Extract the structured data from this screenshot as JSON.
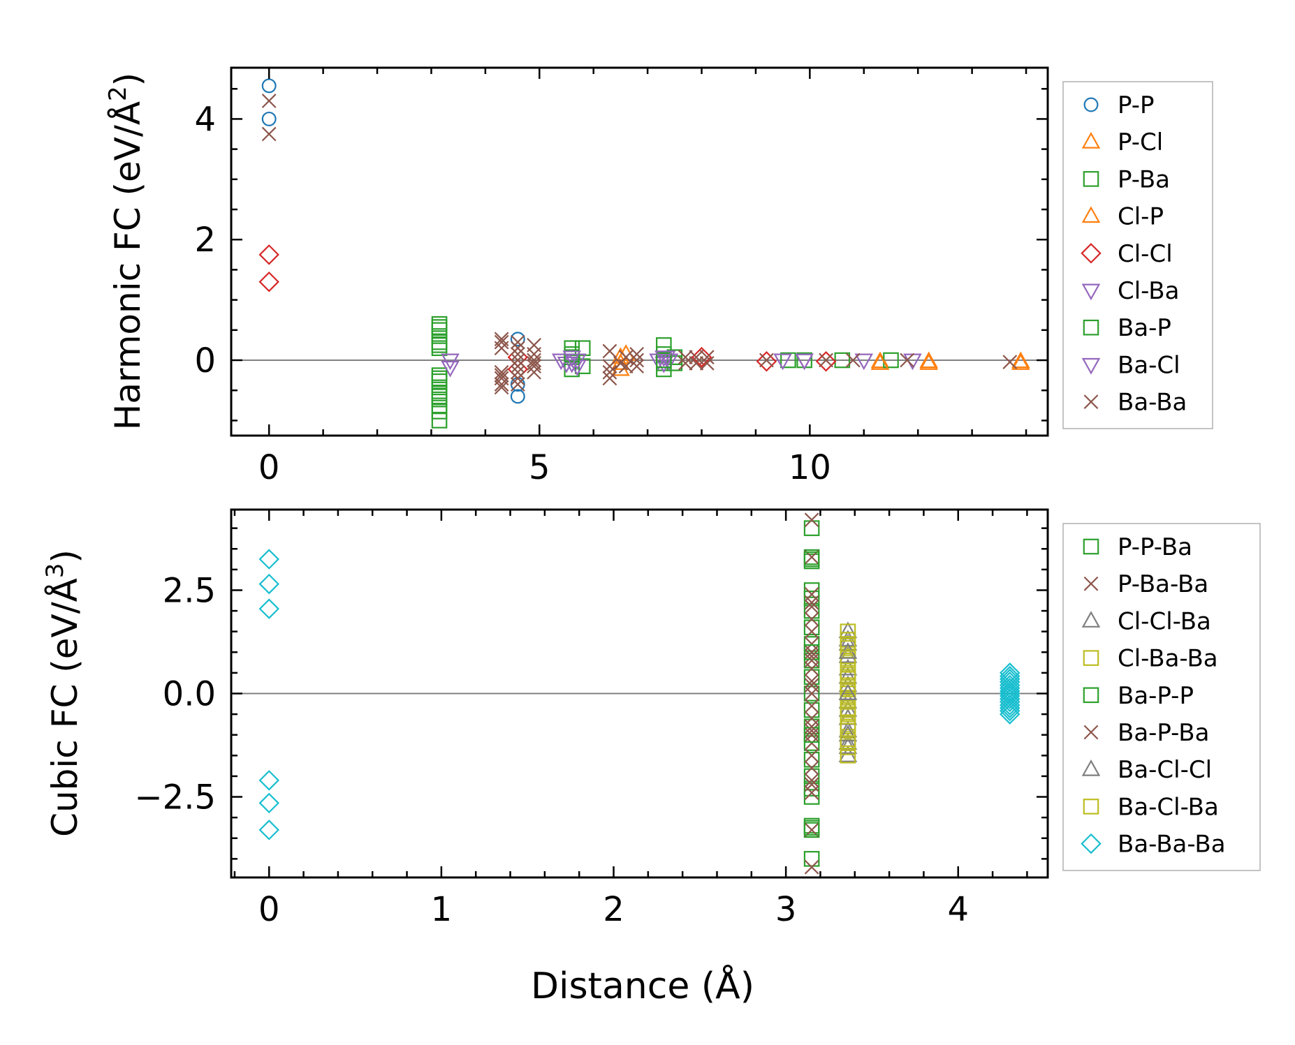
{
  "colors": {
    "blue": "#1f77b4",
    "orange": "#ff7f0e",
    "green": "#2ca02c",
    "red": "#d62728",
    "purple": "#9467bd",
    "brown": "#8c564b",
    "gray": "#7f7f7f",
    "olive": "#bcbd22",
    "cyan": "#17becf"
  },
  "chart_data": [
    {
      "type": "scatter",
      "title": "",
      "xlabel": "",
      "ylabel": "Harmonic FC (eV/Å²)",
      "ylabel_base": "Harmonic FC (eV/Å",
      "ylabel_exp": "2",
      "ylabel_close": ")",
      "xlim": [
        -0.7,
        14.4
      ],
      "ylim": [
        -1.25,
        4.85
      ],
      "xticks": [
        {
          "v": 0,
          "label": "0"
        },
        {
          "v": 5,
          "label": "5"
        },
        {
          "v": 10,
          "label": "10"
        }
      ],
      "yticks": [
        {
          "v": 0,
          "label": "0"
        },
        {
          "v": 2,
          "label": "2"
        },
        {
          "v": 4,
          "label": "4"
        }
      ],
      "xminor_step": 1,
      "yminor_step": 0.5,
      "zero_line": true,
      "legend_position": "outside-right",
      "series": [
        {
          "name": "P-P",
          "marker": "circle",
          "color": "#1f77b4",
          "x": [
            0,
            0,
            4.6,
            4.6,
            4.6
          ],
          "y": [
            4.55,
            4.0,
            0.35,
            -0.6,
            -0.4
          ]
        },
        {
          "name": "P-Cl",
          "marker": "triangle",
          "color": "#ff7f0e",
          "x": [
            6.5,
            6.5,
            11.3,
            12.2,
            13.9
          ],
          "y": [
            0.05,
            -0.15,
            -0.02,
            -0.02,
            -0.02
          ]
        },
        {
          "name": "P-Ba",
          "marker": "square",
          "color": "#2ca02c",
          "x": [
            3.15,
            3.15,
            3.15,
            3.15,
            3.15,
            3.15,
            3.15,
            3.15,
            3.15,
            3.15,
            3.15,
            3.15,
            3.15,
            3.15,
            5.6,
            5.6,
            5.6,
            5.8,
            5.8,
            7.3,
            7.3,
            7.3,
            7.3,
            7.5,
            7.5,
            9.6,
            9.9,
            10.6,
            11.5
          ],
          "y": [
            0.6,
            0.5,
            0.4,
            0.3,
            0.25,
            0.2,
            -0.25,
            -0.35,
            -0.45,
            -0.55,
            -0.65,
            -0.75,
            -0.85,
            -1.0,
            0.2,
            0.05,
            -0.15,
            0.2,
            -0.1,
            0.25,
            0.1,
            -0.05,
            -0.15,
            0.05,
            -0.05,
            0.0,
            0.0,
            0.0,
            0.0
          ]
        },
        {
          "name": "Cl-P",
          "marker": "triangle",
          "color": "#ff7f0e",
          "x": [
            6.5,
            6.6,
            11.3,
            12.2,
            13.9
          ],
          "y": [
            -0.05,
            0.1,
            -0.05,
            -0.05,
            -0.05
          ]
        },
        {
          "name": "Cl-Cl",
          "marker": "diamond",
          "color": "#d62728",
          "x": [
            0,
            0,
            4.6,
            4.6,
            8.0,
            9.2,
            10.3
          ],
          "y": [
            1.75,
            1.3,
            -0.15,
            0.05,
            0.05,
            -0.02,
            -0.02
          ]
        },
        {
          "name": "Cl-Ba",
          "marker": "triangle-down",
          "color": "#9467bd",
          "x": [
            3.35,
            3.35,
            5.4,
            5.5,
            5.6,
            5.7,
            5.7,
            7.2,
            7.3,
            7.35,
            7.4,
            9.5,
            9.9,
            11.0,
            11.9
          ],
          "y": [
            0.0,
            -0.12,
            0.0,
            -0.05,
            -0.05,
            0.0,
            -0.1,
            0.0,
            -0.05,
            0.05,
            0.0,
            0.0,
            0.0,
            0.0,
            0.0
          ]
        },
        {
          "name": "Ba-P",
          "marker": "square",
          "color": "#2ca02c",
          "x": [
            3.15,
            3.15,
            3.15,
            5.6,
            7.3
          ],
          "y": [
            0.55,
            -0.3,
            -0.6,
            0.1,
            0.0
          ]
        },
        {
          "name": "Ba-Cl",
          "marker": "triangle-down",
          "color": "#9467bd",
          "x": [
            5.6,
            7.3,
            9.9
          ],
          "y": [
            0.05,
            0.05,
            0.0
          ]
        },
        {
          "name": "Ba-Ba",
          "marker": "x",
          "color": "#8c564b",
          "x": [
            0,
            0,
            4.3,
            4.3,
            4.3,
            4.3,
            4.3,
            4.3,
            4.3,
            4.3,
            4.6,
            4.6,
            4.6,
            4.6,
            4.6,
            4.6,
            4.6,
            4.6,
            4.9,
            4.9,
            4.9,
            4.9,
            4.9,
            4.9,
            6.3,
            6.3,
            6.3,
            6.3,
            6.5,
            6.6,
            6.6,
            6.8,
            6.8,
            6.8,
            7.7,
            7.7,
            7.9,
            7.9,
            8.1,
            8.1,
            9.2,
            10.3,
            10.8,
            11.8,
            13.7
          ],
          "y": [
            4.3,
            3.75,
            0.35,
            0.3,
            0.2,
            -0.2,
            -0.3,
            -0.4,
            -0.45,
            -0.25,
            0.3,
            0.2,
            0.1,
            0.0,
            -0.1,
            -0.2,
            -0.3,
            -0.4,
            0.25,
            0.1,
            0.0,
            -0.05,
            -0.1,
            -0.2,
            0.15,
            -0.1,
            -0.2,
            -0.3,
            -0.05,
            0.05,
            -0.1,
            0.1,
            0.0,
            -0.1,
            0.05,
            -0.05,
            0.05,
            -0.05,
            0.05,
            -0.05,
            0.0,
            0.0,
            0.0,
            0.0,
            -0.03
          ]
        }
      ]
    },
    {
      "type": "scatter",
      "title": "",
      "xlabel": "Distance (Å)",
      "ylabel": "Cubic FC (eV/Å³)",
      "ylabel_base": "Cubic FC (eV/Å",
      "ylabel_exp": "3",
      "ylabel_close": ")",
      "xlim": [
        -0.22,
        4.52
      ],
      "ylim": [
        -4.45,
        4.45
      ],
      "xticks": [
        {
          "v": 0,
          "label": "0"
        },
        {
          "v": 1,
          "label": "1"
        },
        {
          "v": 2,
          "label": "2"
        },
        {
          "v": 3,
          "label": "3"
        },
        {
          "v": 4,
          "label": "4"
        }
      ],
      "yticks": [
        {
          "v": -2.5,
          "label": "−2.5"
        },
        {
          "v": 0,
          "label": "0.0"
        },
        {
          "v": 2.5,
          "label": "2.5"
        }
      ],
      "xminor_step": 0.2,
      "yminor_step": 0.5,
      "zero_line": true,
      "legend_position": "outside-right",
      "series": [
        {
          "name": "P-P-Ba",
          "marker": "square",
          "color": "#2ca02c",
          "x": [
            3.15,
            3.15,
            3.15,
            3.15,
            3.15,
            3.15,
            3.15,
            3.15,
            3.15,
            3.15,
            3.15,
            3.15,
            3.15,
            3.15,
            3.15,
            3.15,
            3.15,
            3.15,
            3.15,
            3.15,
            3.15
          ],
          "y": [
            4.0,
            3.3,
            3.2,
            2.5,
            2.3,
            2.0,
            1.6,
            1.2,
            0.8,
            0.4,
            0.0,
            -0.4,
            -0.8,
            -1.2,
            -1.6,
            -2.0,
            -2.3,
            -2.5,
            -3.2,
            -3.3,
            -4.0
          ]
        },
        {
          "name": "P-Ba-Ba",
          "marker": "x",
          "color": "#8c564b",
          "x": [
            3.15,
            3.15,
            3.15,
            3.15,
            3.15,
            3.15,
            3.15,
            3.15,
            3.15,
            3.15,
            3.15,
            3.15,
            3.15,
            3.15,
            3.15,
            3.15,
            3.15,
            3.15,
            3.15,
            3.15,
            3.15,
            3.15,
            3.15
          ],
          "y": [
            4.2,
            3.3,
            2.4,
            2.1,
            1.8,
            1.5,
            1.2,
            0.9,
            0.6,
            0.3,
            0.0,
            -0.3,
            -0.6,
            -0.9,
            -1.2,
            -1.5,
            -1.8,
            -2.1,
            -2.4,
            -3.3,
            -4.2,
            1.0,
            -1.0
          ]
        },
        {
          "name": "Cl-Cl-Ba",
          "marker": "triangle",
          "color": "#7f7f7f",
          "x": [
            3.36,
            3.36,
            3.36,
            3.36,
            3.36,
            3.36,
            3.36,
            3.36,
            3.36,
            3.36,
            3.36,
            3.36,
            3.36,
            3.36,
            3.36
          ],
          "y": [
            1.5,
            1.2,
            0.9,
            0.6,
            0.4,
            0.2,
            0.0,
            -0.2,
            -0.4,
            -0.6,
            -0.9,
            -1.2,
            -1.5,
            1.3,
            -1.3
          ]
        },
        {
          "name": "Cl-Ba-Ba",
          "marker": "square",
          "color": "#bcbd22",
          "x": [
            3.36,
            3.36,
            3.36,
            3.36,
            3.36,
            3.36,
            3.36,
            3.36,
            3.36,
            3.36,
            3.36,
            3.36,
            3.36,
            3.36,
            3.36,
            3.36,
            3.36,
            3.36,
            3.36,
            3.36,
            3.36
          ],
          "y": [
            1.5,
            1.3,
            1.1,
            0.9,
            0.7,
            0.5,
            0.35,
            0.2,
            0.1,
            0.0,
            -0.1,
            -0.2,
            -0.35,
            -0.5,
            -0.7,
            -0.9,
            -1.1,
            -1.3,
            -1.5,
            0.8,
            -0.8
          ]
        },
        {
          "name": "Ba-P-P",
          "marker": "square",
          "color": "#2ca02c",
          "x": [
            3.15,
            3.15,
            3.15,
            3.15
          ],
          "y": [
            3.25,
            1.0,
            -1.0,
            -3.25
          ]
        },
        {
          "name": "Ba-P-Ba",
          "marker": "x",
          "color": "#8c564b",
          "x": [
            3.15,
            3.15,
            3.15,
            3.15,
            3.15
          ],
          "y": [
            2.2,
            0.8,
            0.2,
            -0.8,
            -2.2
          ]
        },
        {
          "name": "Ba-Cl-Cl",
          "marker": "triangle",
          "color": "#7f7f7f",
          "x": [
            3.36,
            3.36,
            3.36
          ],
          "y": [
            1.0,
            0.0,
            -1.0
          ]
        },
        {
          "name": "Ba-Cl-Ba",
          "marker": "square",
          "color": "#bcbd22",
          "x": [
            3.36,
            3.36,
            3.36,
            3.36
          ],
          "y": [
            1.2,
            0.4,
            -0.4,
            -1.2
          ]
        },
        {
          "name": "Ba-Ba-Ba",
          "marker": "diamond",
          "color": "#17becf",
          "x": [
            0,
            0,
            0,
            0,
            0,
            0,
            4.3,
            4.3,
            4.3,
            4.3,
            4.3,
            4.3,
            4.3,
            4.3,
            4.3,
            4.3,
            4.3,
            4.3,
            4.3,
            4.3,
            4.3
          ],
          "y": [
            3.25,
            2.65,
            2.05,
            -2.1,
            -2.65,
            -3.3,
            0.5,
            0.42,
            0.35,
            0.28,
            0.2,
            0.13,
            0.06,
            0.0,
            -0.06,
            -0.13,
            -0.2,
            -0.28,
            -0.35,
            -0.42,
            -0.5
          ]
        }
      ]
    }
  ]
}
